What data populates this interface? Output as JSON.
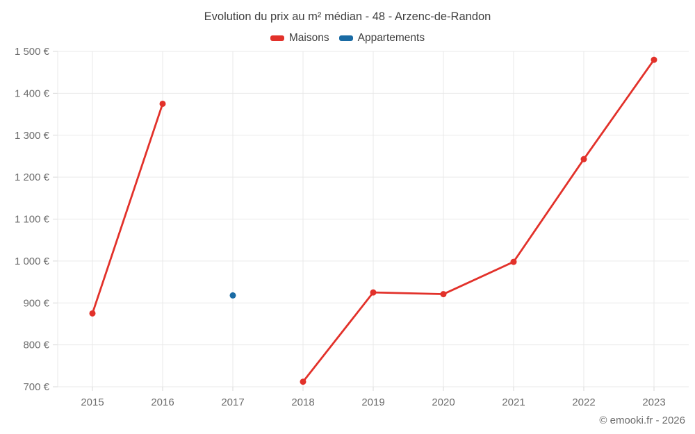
{
  "title": "Evolution du prix au m² médian - 48 - Arzenc-de-Randon",
  "legend": [
    {
      "label": "Maisons",
      "color": "#e2312a"
    },
    {
      "label": "Appartements",
      "color": "#1a6ba4"
    }
  ],
  "footer": "© emooki.fr - 2026",
  "colors": {
    "background": "#ffffff",
    "grid": "#e9e9e9",
    "tick": "#d9d9d9",
    "axis_text": "#6d6d6d",
    "title_text": "#3f3f3f",
    "footer_text": "#6b6b6b",
    "maisons": "#e2312a",
    "appartements": "#1a6ba4"
  },
  "chart_data": {
    "type": "line",
    "title": "Evolution du prix au m² médian - 48 - Arzenc-de-Randon",
    "categories": [
      "2015",
      "2016",
      "2017",
      "2018",
      "2019",
      "2020",
      "2021",
      "2022",
      "2023"
    ],
    "series": [
      {
        "name": "Maisons",
        "color": "#e2312a",
        "values": [
          875,
          1375,
          null,
          712,
          925,
          921,
          998,
          1243,
          1480
        ]
      },
      {
        "name": "Appartements",
        "color": "#1a6ba4",
        "values": [
          null,
          null,
          918,
          null,
          null,
          null,
          null,
          null,
          null
        ]
      }
    ],
    "xlabel": "",
    "ylabel": "",
    "ylim": [
      700,
      1500
    ],
    "ytick_step": 100,
    "y_format": "{n} €",
    "grid": true,
    "legend_position": "top"
  }
}
